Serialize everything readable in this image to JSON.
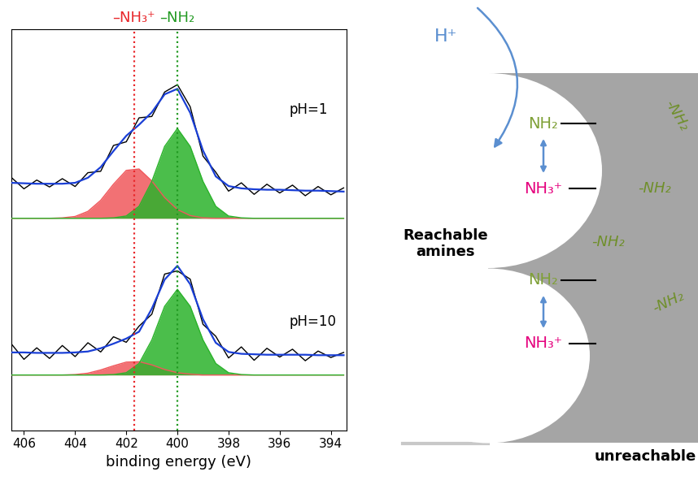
{
  "chart_data": {
    "type": "line",
    "xlabel": "binding energy (eV)",
    "xlim": [
      406.5,
      393.4
    ],
    "xticks": [
      406,
      404,
      402,
      400,
      398,
      396,
      394
    ],
    "ylim": [
      8,
      95
    ],
    "yticks": [],
    "tick_labels": "x",
    "x": [
      406.5,
      406,
      405.5,
      405,
      404.5,
      404,
      403.5,
      403,
      402.5,
      402,
      401.5,
      401,
      400.5,
      400,
      399.5,
      399,
      398.5,
      398,
      397.5,
      397,
      396.5,
      396,
      395.5,
      395,
      394.5,
      394,
      393.5
    ],
    "reference_lines": [
      {
        "label": "–NH₃⁺",
        "x": 401.7,
        "color": "#e8262a"
      },
      {
        "label": "–NH₂",
        "x": 400.0,
        "color": "#229a22"
      }
    ],
    "annotations": [
      "pH=1",
      "pH=10"
    ],
    "series": [
      {
        "type": "area",
        "color": "#f0585c",
        "baseline": 54,
        "values": [
          54,
          54,
          54,
          54,
          54.1,
          54.4,
          55.5,
          57.9,
          61.4,
          64.4,
          64.7,
          62.1,
          58.5,
          55.9,
          54.6,
          54.1,
          54,
          54,
          54,
          54,
          54,
          54,
          54,
          54,
          54,
          54,
          54
        ]
      },
      {
        "type": "area",
        "color": "#2bb32b",
        "baseline": 54,
        "values": [
          54,
          54,
          54,
          54,
          54,
          54,
          54,
          54,
          54.1,
          54.5,
          56.6,
          62.0,
          69.6,
          73.5,
          69.6,
          62.0,
          56.6,
          54.5,
          54.1,
          54,
          54,
          54,
          54,
          54,
          54,
          54,
          54
        ]
      },
      {
        "type": "line",
        "color": "#000000",
        "values": [
          62.9,
          60.4,
          62.3,
          60.8,
          62.6,
          60.9,
          63.9,
          64.2,
          69.8,
          70.6,
          75.8,
          76.1,
          81.4,
          83.0,
          78.2,
          67.5,
          64.0,
          59.9,
          61.7,
          59.2,
          61.4,
          59.5,
          61.2,
          58.9,
          60.9,
          59.1,
          60.6
        ]
      },
      {
        "type": "line",
        "color": "#1a3fd6",
        "values": [
          61.7,
          61.6,
          61.5,
          61.5,
          61.5,
          61.7,
          62.8,
          65.1,
          68.6,
          71.9,
          74.3,
          77.0,
          80.9,
          82.1,
          76.9,
          68.7,
          63.1,
          61.0,
          60.5,
          60.3,
          60.2,
          60.2,
          60.1,
          60.0,
          60.0,
          59.9,
          59.8
        ]
      },
      {
        "type": "area",
        "color": "#f0585c",
        "baseline": 20,
        "values": [
          20,
          20,
          20,
          20,
          20,
          20.1,
          20.4,
          21.1,
          22.0,
          22.8,
          22.9,
          22.2,
          21.2,
          20.5,
          20.2,
          20,
          20,
          20,
          20,
          20,
          20,
          20,
          20,
          20,
          20,
          20,
          20
        ]
      },
      {
        "type": "area",
        "color": "#2bb32b",
        "baseline": 20,
        "values": [
          20,
          20,
          20,
          20,
          20,
          20,
          20,
          20,
          20.1,
          20.5,
          22.5,
          27.6,
          34.9,
          38.6,
          34.9,
          27.6,
          22.5,
          20.5,
          20.1,
          20,
          20,
          20,
          20,
          20,
          20,
          20,
          20
        ]
      },
      {
        "type": "line",
        "color": "#000000",
        "values": [
          26.8,
          23.4,
          25.9,
          23.6,
          26.4,
          24.0,
          27.0,
          25.0,
          28.3,
          27.1,
          30.6,
          33.2,
          41.9,
          42.6,
          40.8,
          31.0,
          28.4,
          23.7,
          26.1,
          23.2,
          25.8,
          23.9,
          25.6,
          23.1,
          25.2,
          23.8,
          24.9
        ]
      },
      {
        "type": "line",
        "color": "#1a3fd6",
        "values": [
          24.9,
          24.9,
          24.8,
          24.8,
          24.8,
          24.9,
          25.1,
          25.8,
          26.8,
          27.9,
          29.4,
          34.4,
          40.7,
          43.7,
          39.7,
          32.1,
          27.0,
          25.0,
          24.6,
          24.5,
          24.4,
          24.4,
          24.4,
          24.4,
          24.3,
          24.3,
          24.3
        ]
      }
    ]
  },
  "diagram": {
    "proton": "H⁺",
    "reachable_label": "Reachable\namines",
    "unreachable_label": "unreachable",
    "reachable_pairs": [
      {
        "neutral": "NH₂",
        "protonated": "NH₃⁺"
      },
      {
        "neutral": "NH₂",
        "protonated": "NH₃⁺"
      }
    ],
    "unreachable_amines": [
      "-NH₂",
      "-NH₂",
      "-NH₂",
      "-NH₂"
    ]
  }
}
